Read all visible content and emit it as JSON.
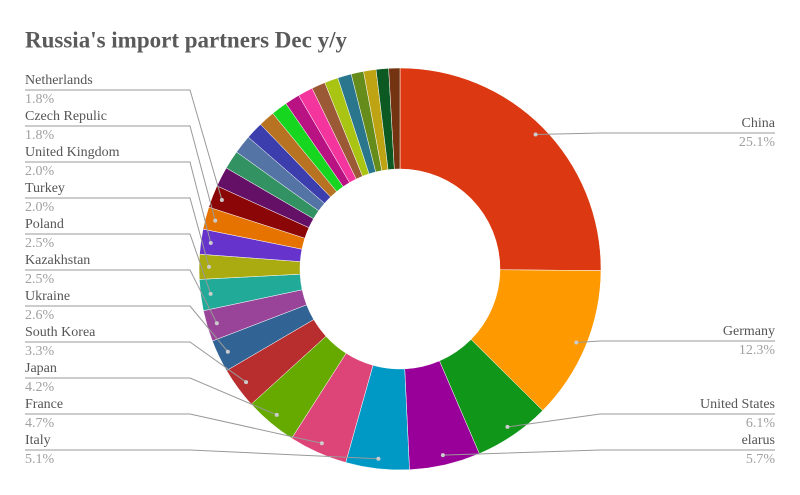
{
  "chart_data": {
    "type": "donut",
    "title": "Russia's import partners Dec y/y",
    "categories": [
      "China",
      "Germany",
      "United States",
      "elarus",
      "Italy",
      "France",
      "Japan",
      "South Korea",
      "Ukraine",
      "Kazakhstan",
      "Poland",
      "Turkey",
      "United Kingdom",
      "Czech Repulic",
      "Netherlands",
      null,
      null,
      null,
      null,
      null,
      null,
      null,
      null,
      null,
      null,
      null,
      null,
      null,
      null,
      null
    ],
    "values": [
      25.1,
      12.3,
      6.1,
      5.7,
      5.1,
      4.7,
      4.2,
      3.3,
      2.6,
      2.5,
      2.5,
      2.0,
      2.0,
      1.8,
      1.8,
      1.6,
      1.5,
      1.5,
      1.4,
      1.3,
      1.3,
      1.2,
      1.2,
      1.1,
      1.1,
      1.1,
      1.0,
      1.0,
      1.0,
      0.9
    ],
    "value_labels": [
      "25.1%",
      "12.3%",
      "6.1%",
      "5.7%",
      "5.1%",
      "4.7%",
      "4.2%",
      "3.3%",
      "2.6%",
      "2.5%",
      "2.5%",
      "2.0%",
      "2.0%",
      "1.8%",
      "1.8%",
      null,
      null,
      null,
      null,
      null,
      null,
      null,
      null,
      null,
      null,
      null,
      null,
      null,
      null,
      null
    ],
    "colors": [
      "#dc3912",
      "#ff9900",
      "#109618",
      "#990099",
      "#0099c6",
      "#dd4477",
      "#66aa00",
      "#b82e2e",
      "#316395",
      "#994499",
      "#22aa99",
      "#aaaa11",
      "#6633cc",
      "#e67300",
      "#8b0707",
      "#651067",
      "#329262",
      "#5574a6",
      "#3b3eac",
      "#b77322",
      "#16d620",
      "#b91383",
      "#f4359e",
      "#9c5935",
      "#a9c413",
      "#2a778d",
      "#668d1c",
      "#bea413",
      "#0c5922",
      "#743411"
    ]
  }
}
